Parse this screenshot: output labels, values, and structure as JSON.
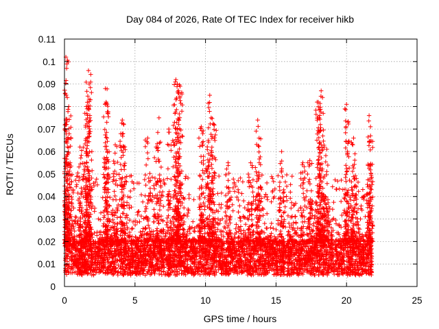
{
  "chart_data": {
    "type": "scatter",
    "title": "Day 084 of 2026, Rate Of TEC Index for receiver hikb",
    "xlabel": "GPS time / hours",
    "ylabel": "ROTI / TECUs",
    "xlim": [
      0,
      25
    ],
    "ylim": [
      0,
      0.11
    ],
    "xticks": [
      0,
      5,
      10,
      15,
      20,
      25
    ],
    "yticks": [
      0,
      0.01,
      0.02,
      0.03,
      0.04,
      0.05,
      0.06,
      0.07,
      0.08,
      0.09,
      0.1,
      0.11
    ],
    "xtick_labels": [
      "0",
      "5",
      "10",
      "15",
      "20",
      "25"
    ],
    "ytick_labels": [
      "0",
      "0.01",
      "0.02",
      "0.03",
      "0.04",
      "0.05",
      "0.06",
      "0.07",
      "0.08",
      "0.09",
      "0.1",
      "0.11"
    ],
    "grid": true,
    "marker": "+",
    "color": "#ff0000",
    "x_data_range": [
      0,
      21.8
    ],
    "base_band": [
      0.005,
      0.02
    ],
    "peaks": [
      {
        "x": 0.1,
        "y": 0.102
      },
      {
        "x": 0.15,
        "y": 0.097
      },
      {
        "x": 0.2,
        "y": 0.084
      },
      {
        "x": 0.3,
        "y": 0.08
      },
      {
        "x": 0.1,
        "y": 0.072
      },
      {
        "x": 0.4,
        "y": 0.055
      },
      {
        "x": 1.7,
        "y": 0.096
      },
      {
        "x": 1.75,
        "y": 0.09
      },
      {
        "x": 1.6,
        "y": 0.079
      },
      {
        "x": 1.8,
        "y": 0.076
      },
      {
        "x": 1.1,
        "y": 0.062
      },
      {
        "x": 1.5,
        "y": 0.065
      },
      {
        "x": 2.9,
        "y": 0.088
      },
      {
        "x": 2.95,
        "y": 0.082
      },
      {
        "x": 3.0,
        "y": 0.073
      },
      {
        "x": 3.6,
        "y": 0.063
      },
      {
        "x": 4.1,
        "y": 0.074
      },
      {
        "x": 4.15,
        "y": 0.068
      },
      {
        "x": 5.9,
        "y": 0.066
      },
      {
        "x": 6.5,
        "y": 0.062
      },
      {
        "x": 6.7,
        "y": 0.075
      },
      {
        "x": 7.4,
        "y": 0.07
      },
      {
        "x": 7.9,
        "y": 0.092
      },
      {
        "x": 8.0,
        "y": 0.09
      },
      {
        "x": 8.1,
        "y": 0.086
      },
      {
        "x": 8.2,
        "y": 0.089
      },
      {
        "x": 7.8,
        "y": 0.073
      },
      {
        "x": 8.1,
        "y": 0.065
      },
      {
        "x": 9.7,
        "y": 0.071
      },
      {
        "x": 9.8,
        "y": 0.063
      },
      {
        "x": 10.3,
        "y": 0.085
      },
      {
        "x": 10.4,
        "y": 0.075
      },
      {
        "x": 10.6,
        "y": 0.072
      },
      {
        "x": 10.2,
        "y": 0.065
      },
      {
        "x": 11.6,
        "y": 0.055
      },
      {
        "x": 13.7,
        "y": 0.074
      },
      {
        "x": 13.8,
        "y": 0.066
      },
      {
        "x": 13.2,
        "y": 0.055
      },
      {
        "x": 15.4,
        "y": 0.06
      },
      {
        "x": 16.9,
        "y": 0.055
      },
      {
        "x": 17.4,
        "y": 0.056
      },
      {
        "x": 18.0,
        "y": 0.082
      },
      {
        "x": 18.2,
        "y": 0.087
      },
      {
        "x": 18.3,
        "y": 0.084
      },
      {
        "x": 18.05,
        "y": 0.075
      },
      {
        "x": 18.1,
        "y": 0.064
      },
      {
        "x": 18.6,
        "y": 0.061
      },
      {
        "x": 20.0,
        "y": 0.081
      },
      {
        "x": 20.1,
        "y": 0.073
      },
      {
        "x": 20.5,
        "y": 0.066
      },
      {
        "x": 20.6,
        "y": 0.059
      },
      {
        "x": 21.6,
        "y": 0.076
      },
      {
        "x": 21.7,
        "y": 0.067
      },
      {
        "x": 21.65,
        "y": 0.054
      }
    ]
  }
}
